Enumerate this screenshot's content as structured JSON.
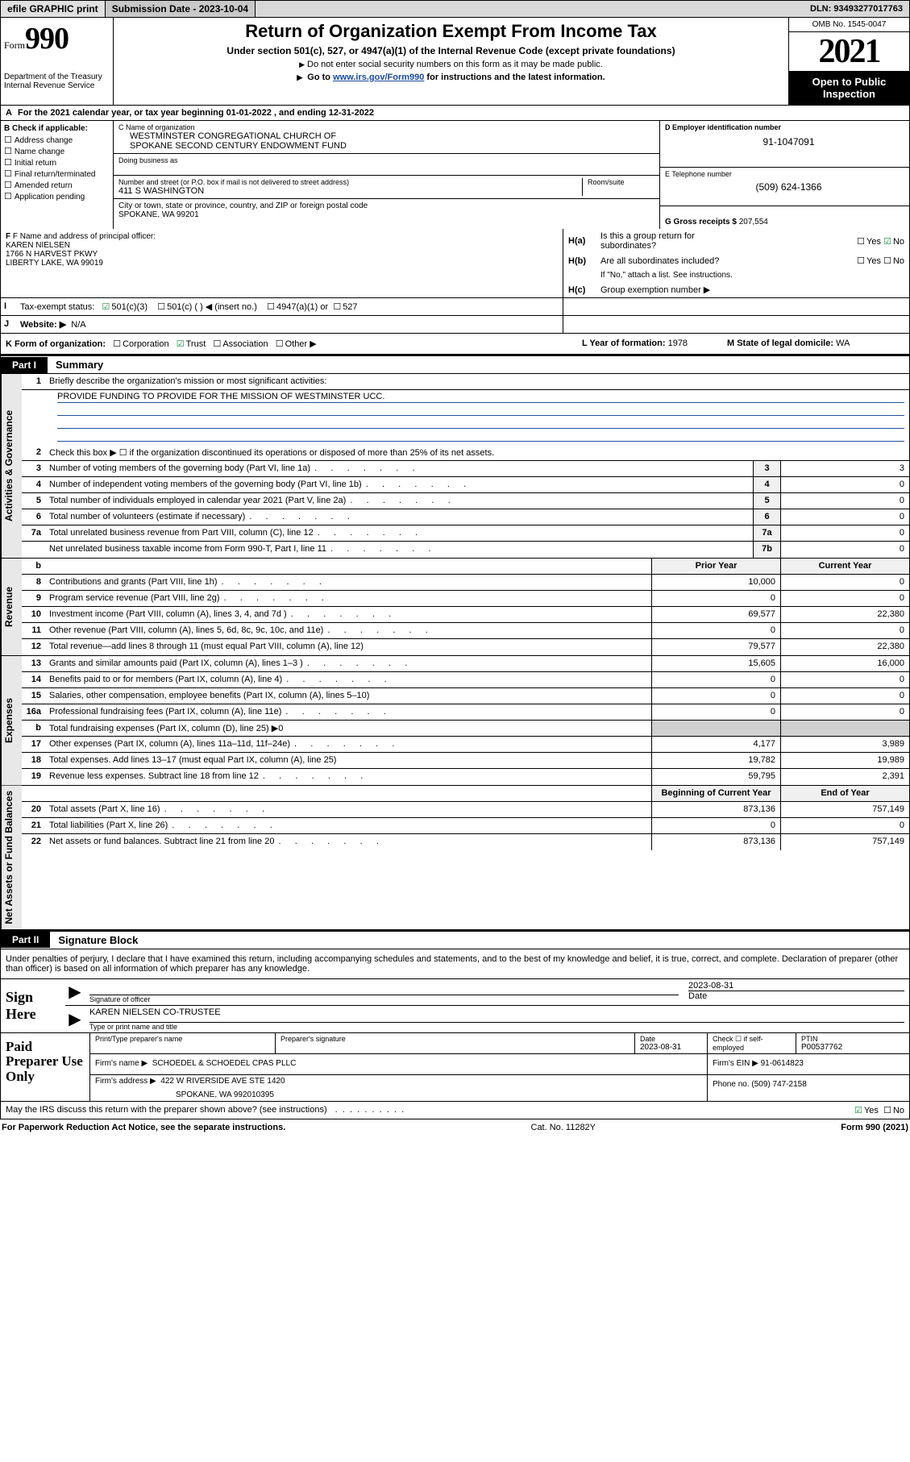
{
  "topbar": {
    "efile": "efile GRAPHIC print",
    "submission_label": "Submission Date - 2023-10-04",
    "dln_label": "DLN: 93493277017763"
  },
  "header": {
    "form_word": "Form",
    "form_num": "990",
    "dept": "Department of the Treasury",
    "irs": "Internal Revenue Service",
    "title": "Return of Organization Exempt From Income Tax",
    "sub1": "Under section 501(c), 527, or 4947(a)(1) of the Internal Revenue Code (except private foundations)",
    "sub2": "Do not enter social security numbers on this form as it may be made public.",
    "sub3_pre": "Go to ",
    "sub3_link": "www.irs.gov/Form990",
    "sub3_post": " for instructions and the latest information.",
    "omb": "OMB No. 1545-0047",
    "year": "2021",
    "otp": "Open to Public Inspection"
  },
  "row_a": "For the 2021 calendar year, or tax year beginning 01-01-2022   , and ending 12-31-2022",
  "section_b": {
    "head": "B Check if applicable:",
    "items": [
      "Address change",
      "Name change",
      "Initial return",
      "Final return/terminated",
      "Amended return",
      "Application pending"
    ]
  },
  "section_c": {
    "name_lbl": "C Name of organization",
    "name1": "WESTMINSTER CONGREGATIONAL CHURCH OF",
    "name2": "SPOKANE SECOND CENTURY ENDOWMENT FUND",
    "dba_lbl": "Doing business as",
    "addr_lbl": "Number and street (or P.O. box if mail is not delivered to street address)",
    "room_lbl": "Room/suite",
    "addr": "411 S WASHINGTON",
    "city_lbl": "City or town, state or province, country, and ZIP or foreign postal code",
    "city": "SPOKANE, WA  99201"
  },
  "section_d": {
    "ein_lbl": "D Employer identification number",
    "ein": "91-1047091",
    "tel_lbl": "E Telephone number",
    "tel": "(509) 624-1366",
    "gross_lbl": "G Gross receipts $",
    "gross": "207,554"
  },
  "section_f": {
    "lbl": "F Name and address of principal officer:",
    "name": "KAREN NIELSEN",
    "addr1": "1766 N HARVEST PKWY",
    "addr2": "LIBERTY LAKE, WA  99019"
  },
  "section_h": {
    "ha_lbl": "Is this a group return for",
    "ha_lbl2": "subordinates?",
    "hb_lbl": "Are all subordinates included?",
    "hb_note": "If \"No,\" attach a list. See instructions.",
    "hc_lbl": "Group exemption number ▶",
    "ha_pre": "H(a)",
    "hb_pre": "H(b)",
    "hc_pre": "H(c)",
    "yes": "Yes",
    "no": "No"
  },
  "row_i": {
    "lbl": "Tax-exempt status:",
    "opts": [
      "501(c)(3)",
      "501(c) (  ) ◀ (insert no.)",
      "4947(a)(1) or",
      "527"
    ]
  },
  "row_j": {
    "lbl": "Website: ▶",
    "val": "N/A"
  },
  "row_k": {
    "left_lbl": "K Form of organization:",
    "opts": [
      "Corporation",
      "Trust",
      "Association",
      "Other ▶"
    ],
    "year_lbl": "L Year of formation:",
    "year": "1978",
    "state_lbl": "M State of legal domicile:",
    "state": "WA"
  },
  "part1": {
    "tab": "Part I",
    "title": "Summary"
  },
  "summary": {
    "sections": [
      {
        "label": "Activities & Governance",
        "rows": [
          {
            "n": "1",
            "t": "Briefly describe the organization's mission or most significant activities:",
            "mission": true
          },
          {
            "mission_text": "PROVIDE FUNDING TO PROVIDE FOR THE MISSION OF WESTMINSTER UCC."
          },
          {
            "n": "2",
            "t": "Check this box ▶ ☐  if the organization discontinued its operations or disposed of more than 25% of its net assets."
          },
          {
            "n": "3",
            "t": "Number of voting members of the governing body (Part VI, line 1a)",
            "dots": true,
            "nc": "3",
            "v2": "3"
          },
          {
            "n": "4",
            "t": "Number of independent voting members of the governing body (Part VI, line 1b)",
            "dots": true,
            "nc": "4",
            "v2": "0"
          },
          {
            "n": "5",
            "t": "Total number of individuals employed in calendar year 2021 (Part V, line 2a)",
            "dots": true,
            "nc": "5",
            "v2": "0"
          },
          {
            "n": "6",
            "t": "Total number of volunteers (estimate if necessary)",
            "dots": true,
            "nc": "6",
            "v2": "0"
          },
          {
            "n": "7a",
            "t": "Total unrelated business revenue from Part VIII, column (C), line 12",
            "dots": true,
            "nc": "7a",
            "v2": "0"
          },
          {
            "n": "",
            "t": "Net unrelated business taxable income from Form 990-T, Part I, line 11",
            "dots": true,
            "nc": "7b",
            "v2": "0",
            "noborder": true
          }
        ]
      },
      {
        "label": "Revenue",
        "rows": [
          {
            "n": "b",
            "t": "",
            "hdr1": "Prior Year",
            "hdr2": "Current Year",
            "header": true
          },
          {
            "n": "8",
            "t": "Contributions and grants (Part VIII, line 1h)",
            "dots": true,
            "v1": "10,000",
            "v2": "0"
          },
          {
            "n": "9",
            "t": "Program service revenue (Part VIII, line 2g)",
            "dots": true,
            "v1": "0",
            "v2": "0"
          },
          {
            "n": "10",
            "t": "Investment income (Part VIII, column (A), lines 3, 4, and 7d )",
            "dots": true,
            "v1": "69,577",
            "v2": "22,380"
          },
          {
            "n": "11",
            "t": "Other revenue (Part VIII, column (A), lines 5, 6d, 8c, 9c, 10c, and 11e)",
            "dots": true,
            "v1": "0",
            "v2": "0"
          },
          {
            "n": "12",
            "t": "Total revenue—add lines 8 through 11 (must equal Part VIII, column (A), line 12)",
            "v1": "79,577",
            "v2": "22,380",
            "noborder": true
          }
        ]
      },
      {
        "label": "Expenses",
        "rows": [
          {
            "n": "13",
            "t": "Grants and similar amounts paid (Part IX, column (A), lines 1–3 )",
            "dots": true,
            "v1": "15,605",
            "v2": "16,000"
          },
          {
            "n": "14",
            "t": "Benefits paid to or for members (Part IX, column (A), line 4)",
            "dots": true,
            "v1": "0",
            "v2": "0"
          },
          {
            "n": "15",
            "t": "Salaries, other compensation, employee benefits (Part IX, column (A), lines 5–10)",
            "v1": "0",
            "v2": "0"
          },
          {
            "n": "16a",
            "t": "Professional fundraising fees (Part IX, column (A), line 11e)",
            "dots": true,
            "v1": "0",
            "v2": "0"
          },
          {
            "n": "b",
            "t": "Total fundraising expenses (Part IX, column (D), line 25) ▶0",
            "shade": true
          },
          {
            "n": "17",
            "t": "Other expenses (Part IX, column (A), lines 11a–11d, 11f–24e)",
            "dots": true,
            "v1": "4,177",
            "v2": "3,989"
          },
          {
            "n": "18",
            "t": "Total expenses. Add lines 13–17 (must equal Part IX, column (A), line 25)",
            "v1": "19,782",
            "v2": "19,989"
          },
          {
            "n": "19",
            "t": "Revenue less expenses. Subtract line 18 from line 12",
            "dots": true,
            "v1": "59,795",
            "v2": "2,391",
            "noborder": true
          }
        ]
      },
      {
        "label": "Net Assets or Fund Balances",
        "rows": [
          {
            "n": "",
            "t": "",
            "hdr1": "Beginning of Current Year",
            "hdr2": "End of Year",
            "header": true
          },
          {
            "n": "20",
            "t": "Total assets (Part X, line 16)",
            "dots": true,
            "v1": "873,136",
            "v2": "757,149"
          },
          {
            "n": "21",
            "t": "Total liabilities (Part X, line 26)",
            "dots": true,
            "v1": "0",
            "v2": "0"
          },
          {
            "n": "22",
            "t": "Net assets or fund balances. Subtract line 21 from line 20",
            "dots": true,
            "v1": "873,136",
            "v2": "757,149",
            "noborder": true
          }
        ]
      }
    ]
  },
  "part2": {
    "tab": "Part II",
    "title": "Signature Block"
  },
  "sig_intro": "Under penalties of perjury, I declare that I have examined this return, including accompanying schedules and statements, and to the best of my knowledge and belief, it is true, correct, and complete. Declaration of preparer (other than officer) is based on all information of which preparer has any knowledge.",
  "sign": {
    "left": "Sign Here",
    "officer_cap": "Signature of officer",
    "date_cap": "Date",
    "date_val": "2023-08-31",
    "name_val": "KAREN NIELSEN  CO-TRUSTEE",
    "name_cap": "Type or print name and title"
  },
  "prep": {
    "left": "Paid Preparer Use Only",
    "r1": {
      "c1_cap": "Print/Type preparer's name",
      "c2_cap": "Preparer's signature",
      "c3_cap": "Date",
      "c3_val": "2023-08-31",
      "c4_cap": "Check ☐ if self-employed",
      "c5_cap": "PTIN",
      "c5_val": "P00537762"
    },
    "r2": {
      "lbl": "Firm's name     ▶",
      "val": "SCHOEDEL & SCHOEDEL CPAS PLLC",
      "ein_lbl": "Firm's EIN ▶",
      "ein": "91-0614823"
    },
    "r3": {
      "lbl": "Firm's address ▶",
      "val1": "422 W RIVERSIDE AVE STE 1420",
      "val2": "SPOKANE, WA  992010395",
      "ph_lbl": "Phone no.",
      "ph": "(509) 747-2158"
    }
  },
  "footer": {
    "discuss": "May the IRS discuss this return with the preparer shown above? (see instructions)",
    "dots": ".  .  .  .  .  .  .  .  .  .",
    "yes": "Yes",
    "no": "No",
    "pra": "For Paperwork Reduction Act Notice, see the separate instructions.",
    "cat": "Cat. No. 11282Y",
    "form": "Form 990 (2021)"
  }
}
